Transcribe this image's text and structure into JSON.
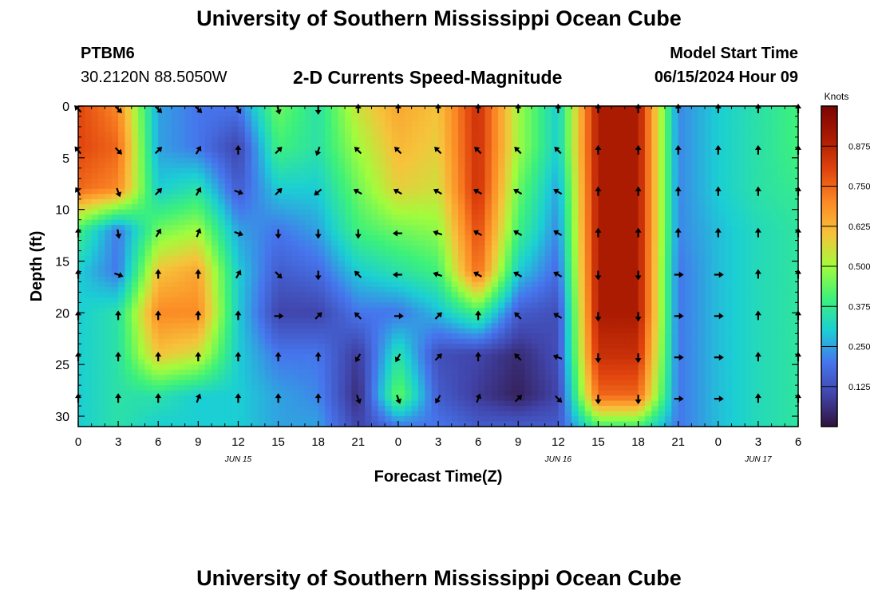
{
  "page": {
    "title_top": "University of Southern Mississippi Ocean Cube",
    "title_bottom": "University of Southern Mississippi Ocean Cube",
    "station_id": "PTBM6",
    "station_coords": "30.2120N  88.5050W",
    "subtitle": "2-D Currents Speed-Magnitude",
    "model_start_label": "Model Start Time",
    "model_start_value": "06/15/2024 Hour 09"
  },
  "chart_data": {
    "type": "heatmap",
    "title": "2-D Currents Speed-Magnitude",
    "xlabel": "Forecast Time(Z)",
    "ylabel": "Depth (ft)",
    "x_ticks": [
      "0",
      "3",
      "6",
      "9",
      "12",
      "15",
      "18",
      "21",
      "0",
      "3",
      "6",
      "9",
      "12",
      "15",
      "18",
      "21",
      "0",
      "3",
      "6"
    ],
    "x_hours": [
      0,
      3,
      6,
      9,
      12,
      15,
      18,
      21,
      24,
      27,
      30,
      33,
      36,
      39,
      42,
      45,
      48,
      51,
      54
    ],
    "xlim": [
      0,
      54
    ],
    "date_labels": [
      {
        "text": "JUN 15",
        "hour": 12
      },
      {
        "text": "JUN 16",
        "hour": 36
      },
      {
        "text": "JUN 17",
        "hour": 51
      }
    ],
    "y_ticks": [
      "0",
      "5",
      "10",
      "15",
      "20",
      "25",
      "30"
    ],
    "y_values": [
      0,
      5,
      10,
      15,
      20,
      25,
      30
    ],
    "ylim": [
      0,
      31
    ],
    "y_inverted": true,
    "colorbar": {
      "label": "Knots",
      "ticks": [
        "0.125",
        "0.250",
        "0.375",
        "0.500",
        "0.625",
        "0.750",
        "0.875"
      ],
      "tick_values": [
        0.125,
        0.25,
        0.375,
        0.5,
        0.625,
        0.75,
        0.875
      ],
      "range": [
        0.0,
        1.0
      ],
      "colormap": "turbo"
    },
    "grid_depths": [
      0,
      4,
      8,
      12,
      16,
      20,
      24,
      28,
      31
    ],
    "grid_hours": [
      0,
      3,
      6,
      9,
      12,
      15,
      18,
      21,
      24,
      27,
      30,
      33,
      36,
      39,
      42,
      45,
      48,
      51,
      54
    ],
    "speed_knots": [
      [
        0.8,
        0.7,
        0.25,
        0.2,
        0.2,
        0.45,
        0.35,
        0.55,
        0.65,
        0.6,
        0.85,
        0.5,
        0.3,
        0.9,
        0.9,
        0.22,
        0.3,
        0.35,
        0.4
      ],
      [
        0.8,
        0.75,
        0.25,
        0.2,
        0.1,
        0.4,
        0.35,
        0.5,
        0.62,
        0.58,
        0.85,
        0.5,
        0.3,
        0.9,
        0.9,
        0.22,
        0.3,
        0.35,
        0.4
      ],
      [
        0.75,
        0.7,
        0.3,
        0.35,
        0.15,
        0.3,
        0.3,
        0.45,
        0.58,
        0.55,
        0.85,
        0.45,
        0.25,
        0.9,
        0.9,
        0.22,
        0.3,
        0.35,
        0.38
      ],
      [
        0.4,
        0.2,
        0.45,
        0.5,
        0.25,
        0.2,
        0.25,
        0.4,
        0.45,
        0.48,
        0.8,
        0.4,
        0.22,
        0.9,
        0.9,
        0.22,
        0.28,
        0.33,
        0.36
      ],
      [
        0.3,
        0.2,
        0.6,
        0.65,
        0.3,
        0.15,
        0.18,
        0.3,
        0.35,
        0.4,
        0.75,
        0.3,
        0.18,
        0.9,
        0.9,
        0.2,
        0.28,
        0.33,
        0.36
      ],
      [
        0.3,
        0.35,
        0.7,
        0.7,
        0.3,
        0.1,
        0.1,
        0.2,
        0.2,
        0.28,
        0.4,
        0.15,
        0.12,
        0.9,
        0.9,
        0.2,
        0.28,
        0.33,
        0.36
      ],
      [
        0.3,
        0.35,
        0.6,
        0.55,
        0.3,
        0.2,
        0.2,
        0.08,
        0.35,
        0.12,
        0.1,
        0.05,
        0.12,
        0.85,
        0.85,
        0.2,
        0.28,
        0.33,
        0.36
      ],
      [
        0.3,
        0.35,
        0.35,
        0.3,
        0.3,
        0.25,
        0.22,
        0.05,
        0.45,
        0.15,
        0.08,
        0.03,
        0.1,
        0.75,
        0.75,
        0.2,
        0.28,
        0.33,
        0.36
      ],
      [
        0.3,
        0.35,
        0.3,
        0.3,
        0.3,
        0.25,
        0.25,
        0.1,
        0.2,
        0.2,
        0.15,
        0.15,
        0.15,
        0.4,
        0.4,
        0.2,
        0.28,
        0.33,
        0.36
      ]
    ],
    "arrow_depths": [
      0,
      4,
      8,
      12,
      16,
      20,
      24,
      28
    ],
    "arrow_hours": [
      0,
      3,
      6,
      9,
      12,
      15,
      18,
      21,
      24,
      27,
      30,
      33,
      36,
      39,
      42,
      45,
      48,
      51,
      54
    ],
    "arrow_dirs_deg": [
      [
        315,
        135,
        135,
        135,
        150,
        165,
        180,
        0,
        0,
        0,
        0,
        0,
        0,
        0,
        0,
        0,
        0,
        0,
        0
      ],
      [
        320,
        135,
        45,
        30,
        0,
        45,
        200,
        315,
        315,
        315,
        315,
        315,
        315,
        0,
        0,
        0,
        0,
        0,
        0
      ],
      [
        330,
        160,
        45,
        30,
        110,
        45,
        230,
        300,
        300,
        300,
        300,
        300,
        300,
        0,
        0,
        0,
        0,
        0,
        0
      ],
      [
        0,
        170,
        30,
        20,
        110,
        180,
        180,
        180,
        270,
        290,
        300,
        300,
        300,
        0,
        0,
        0,
        0,
        0,
        0
      ],
      [
        0,
        110,
        0,
        0,
        30,
        135,
        180,
        315,
        270,
        290,
        300,
        300,
        300,
        180,
        180,
        90,
        90,
        0,
        0
      ],
      [
        0,
        0,
        0,
        0,
        0,
        90,
        45,
        315,
        90,
        45,
        0,
        315,
        300,
        180,
        180,
        90,
        90,
        0,
        0
      ],
      [
        0,
        0,
        0,
        0,
        0,
        0,
        0,
        210,
        210,
        45,
        0,
        315,
        290,
        180,
        180,
        90,
        90,
        0,
        0
      ],
      [
        0,
        0,
        0,
        20,
        0,
        0,
        0,
        160,
        160,
        210,
        20,
        45,
        135,
        180,
        180,
        90,
        90,
        0,
        0
      ]
    ]
  }
}
